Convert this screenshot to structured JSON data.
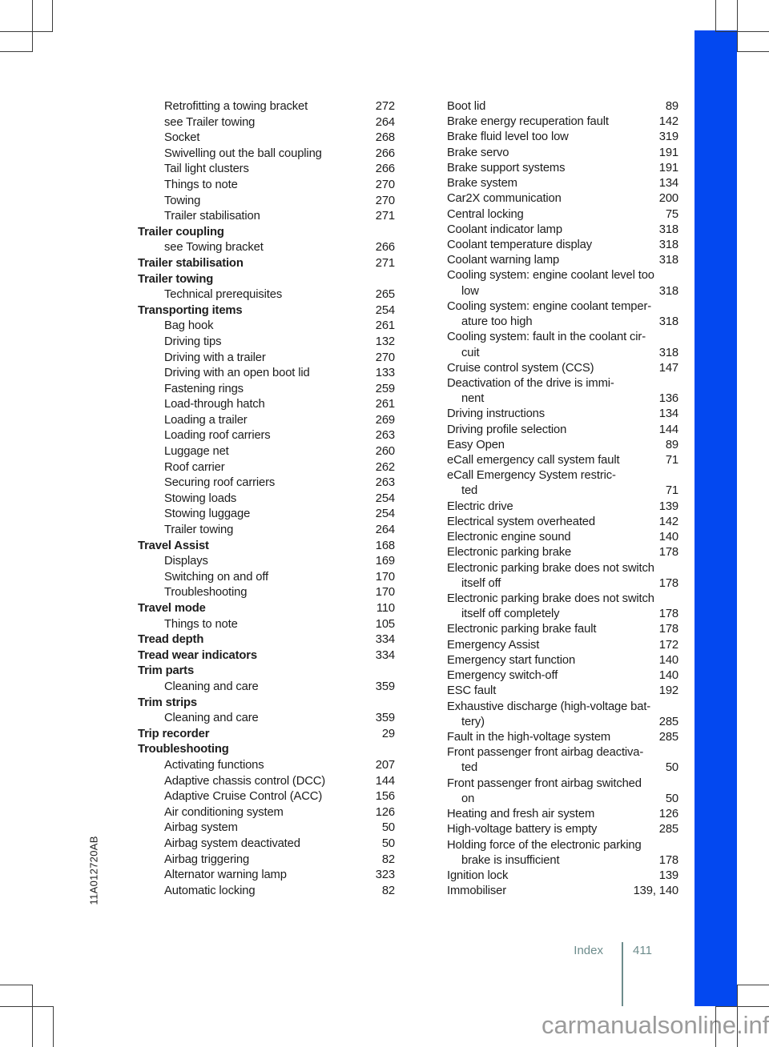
{
  "page": {
    "print_code": "11A012720AB",
    "watermark": "carmanualsonline.info",
    "colors": {
      "accent_blue": "#0348f0",
      "footer_color": "#6d8c8c",
      "text_color": "#1c1c1c",
      "watermark_color": "#9b9b9b"
    }
  },
  "footer": {
    "section": "Index",
    "page_number": "411"
  },
  "index": {
    "left_column": [
      {
        "s": "sub",
        "t": "Retrofitting a towing bracket",
        "p": "272"
      },
      {
        "s": "sub",
        "t": "see Trailer towing",
        "p": "264"
      },
      {
        "s": "sub",
        "t": "Socket",
        "p": "268"
      },
      {
        "s": "sub",
        "t": "Swivelling out the ball coupling",
        "p": "266"
      },
      {
        "s": "sub",
        "t": "Tail light clusters",
        "p": "266"
      },
      {
        "s": "sub",
        "t": "Things to note",
        "p": "270"
      },
      {
        "s": "sub",
        "t": "Towing",
        "p": "270"
      },
      {
        "s": "sub",
        "t": "Trailer stabilisation",
        "p": "271"
      },
      {
        "s": "head",
        "t": "Trailer coupling",
        "p": ""
      },
      {
        "s": "sub",
        "t": "see Towing bracket",
        "p": "266"
      },
      {
        "s": "head",
        "t": "Trailer stabilisation",
        "p": "271"
      },
      {
        "s": "head",
        "t": "Trailer towing",
        "p": ""
      },
      {
        "s": "sub",
        "t": "Technical prerequisites",
        "p": "265"
      },
      {
        "s": "head",
        "t": "Transporting items",
        "p": "254"
      },
      {
        "s": "sub",
        "t": "Bag hook",
        "p": "261"
      },
      {
        "s": "sub",
        "t": "Driving tips",
        "p": "132"
      },
      {
        "s": "sub",
        "t": "Driving with a trailer",
        "p": "270"
      },
      {
        "s": "sub",
        "t": "Driving with an open boot lid",
        "p": "133"
      },
      {
        "s": "sub",
        "t": "Fastening rings",
        "p": "259"
      },
      {
        "s": "sub",
        "t": "Load-through hatch",
        "p": "261"
      },
      {
        "s": "sub",
        "t": "Loading a trailer",
        "p": "269"
      },
      {
        "s": "sub",
        "t": "Loading roof carriers",
        "p": "263"
      },
      {
        "s": "sub",
        "t": "Luggage net",
        "p": "260"
      },
      {
        "s": "sub",
        "t": "Roof carrier",
        "p": "262"
      },
      {
        "s": "sub",
        "t": "Securing roof carriers",
        "p": "263"
      },
      {
        "s": "sub",
        "t": "Stowing loads",
        "p": "254"
      },
      {
        "s": "sub",
        "t": "Stowing luggage",
        "p": "254"
      },
      {
        "s": "sub",
        "t": "Trailer towing",
        "p": "264"
      },
      {
        "s": "head",
        "t": "Travel Assist",
        "p": "168"
      },
      {
        "s": "sub",
        "t": "Displays",
        "p": "169"
      },
      {
        "s": "sub",
        "t": "Switching on and off",
        "p": "170"
      },
      {
        "s": "sub",
        "t": "Troubleshooting",
        "p": "170"
      },
      {
        "s": "head",
        "t": "Travel mode",
        "p": "110"
      },
      {
        "s": "sub",
        "t": "Things to note",
        "p": "105"
      },
      {
        "s": "head",
        "t": "Tread depth",
        "p": "334"
      },
      {
        "s": "head",
        "t": "Tread wear indicators",
        "p": "334"
      },
      {
        "s": "head",
        "t": "Trim parts",
        "p": ""
      },
      {
        "s": "sub",
        "t": "Cleaning and care",
        "p": "359"
      },
      {
        "s": "head",
        "t": "Trim strips",
        "p": ""
      },
      {
        "s": "sub",
        "t": "Cleaning and care",
        "p": "359"
      },
      {
        "s": "head",
        "t": "Trip recorder",
        "p": "29"
      },
      {
        "s": "head",
        "t": "Troubleshooting",
        "p": ""
      },
      {
        "s": "sub",
        "t": "Activating functions",
        "p": "207"
      },
      {
        "s": "sub",
        "t": "Adaptive chassis control (DCC)",
        "p": "144"
      },
      {
        "s": "sub",
        "t": "Adaptive Cruise Control (ACC)",
        "p": "156"
      },
      {
        "s": "sub",
        "t": "Air conditioning system",
        "p": "126"
      },
      {
        "s": "sub",
        "t": "Airbag system",
        "p": "50"
      },
      {
        "s": "sub",
        "t": "Airbag system deactivated",
        "p": "50"
      },
      {
        "s": "sub",
        "t": "Airbag triggering",
        "p": "82"
      },
      {
        "s": "sub",
        "t": "Alternator warning lamp",
        "p": "323"
      },
      {
        "s": "sub",
        "t": "Automatic locking",
        "p": "82"
      }
    ],
    "right_column": [
      {
        "s": "entry",
        "t": "Boot lid",
        "p": "89"
      },
      {
        "s": "entry",
        "t": "Brake energy recuperation fault",
        "p": "142"
      },
      {
        "s": "entry",
        "t": "Brake fluid level too low",
        "p": "319"
      },
      {
        "s": "entry",
        "t": "Brake servo",
        "p": "191"
      },
      {
        "s": "entry",
        "t": "Brake support systems",
        "p": "191"
      },
      {
        "s": "entry",
        "t": "Brake system",
        "p": "134"
      },
      {
        "s": "entry",
        "t": "Car2X communication",
        "p": "200"
      },
      {
        "s": "entry",
        "t": "Central locking",
        "p": "75"
      },
      {
        "s": "entry",
        "t": "Coolant indicator lamp",
        "p": "318"
      },
      {
        "s": "entry",
        "t": "Coolant temperature display",
        "p": "318"
      },
      {
        "s": "entry",
        "t": "Coolant warning lamp",
        "p": "318"
      },
      {
        "s": "entry",
        "t": "Cooling system: engine coolant level too",
        "p": ""
      },
      {
        "s": "wrap",
        "t": "low",
        "p": "318"
      },
      {
        "s": "entry",
        "t": "Cooling system: engine coolant temper-",
        "p": ""
      },
      {
        "s": "wrap",
        "t": "ature too high",
        "p": "318"
      },
      {
        "s": "entry",
        "t": "Cooling system: fault in the coolant cir-",
        "p": ""
      },
      {
        "s": "wrap",
        "t": "cuit",
        "p": "318"
      },
      {
        "s": "entry",
        "t": "Cruise control system (CCS)",
        "p": "147"
      },
      {
        "s": "entry",
        "t": "Deactivation of the drive is immi-",
        "p": ""
      },
      {
        "s": "wrap",
        "t": "nent",
        "p": "136"
      },
      {
        "s": "entry",
        "t": "Driving instructions",
        "p": "134"
      },
      {
        "s": "entry",
        "t": "Driving profile selection",
        "p": "144"
      },
      {
        "s": "entry",
        "t": "Easy Open",
        "p": "89"
      },
      {
        "s": "entry",
        "t": "eCall emergency call system fault",
        "p": "71"
      },
      {
        "s": "entry",
        "t": "eCall Emergency System restric-",
        "p": ""
      },
      {
        "s": "wrap",
        "t": "ted",
        "p": "71"
      },
      {
        "s": "entry",
        "t": "Electric drive",
        "p": "139"
      },
      {
        "s": "entry",
        "t": "Electrical system overheated",
        "p": "142"
      },
      {
        "s": "entry",
        "t": "Electronic engine sound",
        "p": "140"
      },
      {
        "s": "entry",
        "t": "Electronic parking brake",
        "p": "178"
      },
      {
        "s": "entry",
        "t": "Electronic parking brake does not switch",
        "p": ""
      },
      {
        "s": "wrap",
        "t": "itself off",
        "p": "178"
      },
      {
        "s": "entry",
        "t": "Electronic parking brake does not switch",
        "p": ""
      },
      {
        "s": "wrap",
        "t": "itself off completely",
        "p": "178"
      },
      {
        "s": "entry",
        "t": "Electronic parking brake fault",
        "p": "178"
      },
      {
        "s": "entry",
        "t": "Emergency Assist",
        "p": "172"
      },
      {
        "s": "entry",
        "t": "Emergency start function",
        "p": "140"
      },
      {
        "s": "entry",
        "t": "Emergency switch-off",
        "p": "140"
      },
      {
        "s": "entry",
        "t": "ESC fault",
        "p": "192"
      },
      {
        "s": "entry",
        "t": "Exhaustive discharge (high-voltage bat-",
        "p": ""
      },
      {
        "s": "wrap",
        "t": "tery)",
        "p": "285"
      },
      {
        "s": "entry",
        "t": "Fault in the high-voltage system",
        "p": "285"
      },
      {
        "s": "entry",
        "t": "Front passenger front airbag deactiva-",
        "p": ""
      },
      {
        "s": "wrap",
        "t": "ted",
        "p": "50"
      },
      {
        "s": "entry",
        "t": "Front passenger front airbag switched",
        "p": ""
      },
      {
        "s": "wrap",
        "t": "on",
        "p": "50"
      },
      {
        "s": "entry",
        "t": "Heating and fresh air system",
        "p": "126"
      },
      {
        "s": "entry",
        "t": "High-voltage battery is empty",
        "p": "285"
      },
      {
        "s": "entry",
        "t": "Holding force of the electronic parking",
        "p": ""
      },
      {
        "s": "wrap",
        "t": "brake is insufficient",
        "p": "178"
      },
      {
        "s": "entry",
        "t": "Ignition lock",
        "p": "139"
      },
      {
        "s": "entry",
        "t": "Immobiliser",
        "p": "139, 140"
      }
    ]
  }
}
